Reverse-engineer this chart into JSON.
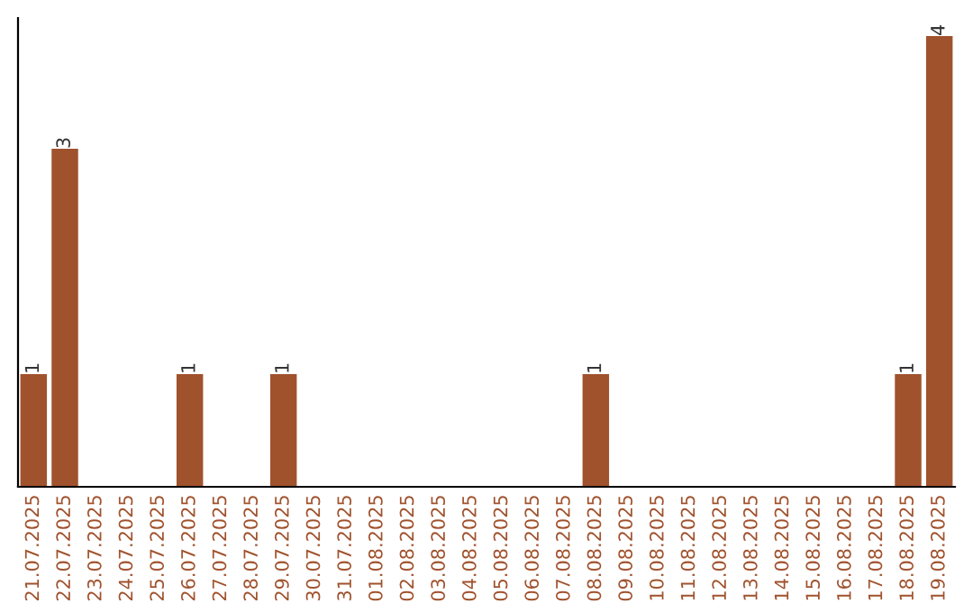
{
  "chart_data": {
    "type": "bar",
    "categories": [
      "21.07.2025",
      "22.07.2025",
      "23.07.2025",
      "24.07.2025",
      "25.07.2025",
      "26.07.2025",
      "27.07.2025",
      "28.07.2025",
      "29.07.2025",
      "30.07.2025",
      "31.07.2025",
      "01.08.2025",
      "02.08.2025",
      "03.08.2025",
      "04.08.2025",
      "05.08.2025",
      "06.08.2025",
      "07.08.2025",
      "08.08.2025",
      "09.08.2025",
      "10.08.2025",
      "11.08.2025",
      "12.08.2025",
      "13.08.2025",
      "14.08.2025",
      "15.08.2025",
      "16.08.2025",
      "17.08.2025",
      "18.08.2025",
      "19.08.2025"
    ],
    "values": [
      1,
      3,
      0,
      0,
      0,
      1,
      0,
      0,
      1,
      0,
      0,
      0,
      0,
      0,
      0,
      0,
      0,
      0,
      1,
      0,
      0,
      0,
      0,
      0,
      0,
      0,
      0,
      0,
      1,
      4
    ],
    "value_labels": [
      "1",
      "3",
      null,
      null,
      null,
      "1",
      null,
      null,
      "1",
      null,
      null,
      null,
      null,
      null,
      null,
      null,
      null,
      null,
      "1",
      null,
      null,
      null,
      null,
      null,
      null,
      null,
      null,
      null,
      "1",
      "4"
    ],
    "color": "#a0522d",
    "grid": false,
    "legend": false
  }
}
